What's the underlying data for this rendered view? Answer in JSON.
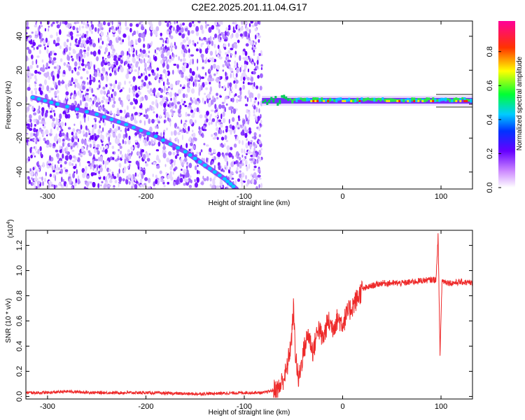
{
  "title": "C2E2.2025.201.11.04.G17",
  "chart_data": [
    {
      "type": "heatmap",
      "xlabel": "Height of straight line (km)",
      "ylabel": "Frequency (Hz)",
      "xlim": [
        -322,
        132
      ],
      "ylim": [
        -50,
        49
      ],
      "xticks": [
        -300,
        -200,
        -100,
        0,
        100
      ],
      "yticks": [
        -40,
        -20,
        0,
        20,
        40
      ],
      "colorbar_label": "Normalized spectral amplitude",
      "colorbar_ticks": [
        "0.0",
        "0.2",
        "0.4",
        "0.6",
        "0.8"
      ],
      "colorbar_range": [
        0,
        0.98
      ],
      "colormap": [
        "#ffffff",
        "#9900ff",
        "#3300ff",
        "#00ccff",
        "#00ff33",
        "#ffff00",
        "#ff0000",
        "#ff0099"
      ],
      "noise_region_x": [
        -322,
        -82
      ],
      "diagonal_line": [
        [
          -315,
          4
        ],
        [
          -290,
          0
        ],
        [
          -250,
          -6
        ],
        [
          -220,
          -12
        ],
        [
          -190,
          -19
        ],
        [
          -160,
          -28
        ],
        [
          -140,
          -36
        ],
        [
          -120,
          -44
        ],
        [
          -108,
          -50
        ]
      ],
      "horizontal_band": {
        "x": [
          -82,
          132
        ],
        "freq": 2
      }
    },
    {
      "type": "line",
      "xlabel": "Height of straight line (km)",
      "ylabel": "SNR (10 * v/v)",
      "y_multiplier": "(x10",
      "y_multiplier_exp": "4",
      "xlim": [
        -322,
        132
      ],
      "ylim": [
        -0.02,
        1.32
      ],
      "xticks": [
        -300,
        -200,
        -100,
        0,
        100
      ],
      "yticks": [
        "0.0",
        "0.2",
        "0.4",
        "0.6",
        "0.8",
        "1.0",
        "1.2"
      ],
      "color": "#ee2a2a",
      "series_points": [
        [
          -322,
          0.03
        ],
        [
          -300,
          0.03
        ],
        [
          -280,
          0.04
        ],
        [
          -250,
          0.03
        ],
        [
          -200,
          0.03
        ],
        [
          -150,
          0.02
        ],
        [
          -100,
          0.03
        ],
        [
          -80,
          0.03
        ],
        [
          -65,
          0.06
        ],
        [
          -57,
          0.2
        ],
        [
          -52,
          0.45
        ],
        [
          -50,
          0.7
        ],
        [
          -48,
          0.35
        ],
        [
          -45,
          0.12
        ],
        [
          -40,
          0.35
        ],
        [
          -35,
          0.5
        ],
        [
          -30,
          0.35
        ],
        [
          -25,
          0.55
        ],
        [
          -20,
          0.45
        ],
        [
          -15,
          0.6
        ],
        [
          -10,
          0.55
        ],
        [
          -5,
          0.62
        ],
        [
          0,
          0.58
        ],
        [
          5,
          0.66
        ],
        [
          10,
          0.72
        ],
        [
          15,
          0.78
        ],
        [
          20,
          0.85
        ],
        [
          30,
          0.88
        ],
        [
          40,
          0.9
        ],
        [
          60,
          0.9
        ],
        [
          80,
          0.92
        ],
        [
          95,
          0.93
        ],
        [
          97,
          1.28
        ],
        [
          99,
          0.33
        ],
        [
          101,
          0.92
        ],
        [
          110,
          0.9
        ],
        [
          120,
          0.91
        ],
        [
          132,
          0.9
        ]
      ]
    }
  ]
}
